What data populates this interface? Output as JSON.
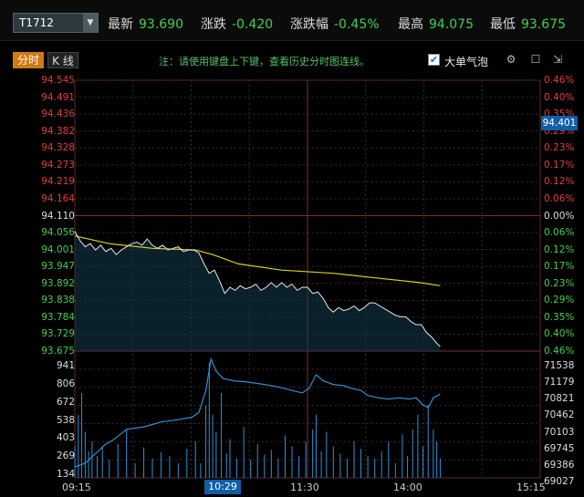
{
  "header": {
    "ticker": "T1712",
    "stats": [
      {
        "label": "最新",
        "value": "93.690",
        "color": "#3fd14f"
      },
      {
        "label": "涨跌",
        "value": "-0.420",
        "color": "#3fd14f"
      },
      {
        "label": "涨跌幅",
        "value": "-0.45%",
        "color": "#3fd14f"
      },
      {
        "label": "最高",
        "value": "94.075",
        "color": "#3fd14f"
      },
      {
        "label": "最低",
        "value": "93.675",
        "color": "#3fd14f"
      }
    ]
  },
  "toolbar": {
    "tab_intraday": "分时",
    "tab_kline": "K 线",
    "hint": "注：请使用键盘上下键，查看历史分时图连线。",
    "checkbox_label": "大单气泡",
    "checkbox_mark": "✔"
  },
  "colors": {
    "up": "#e23b3b",
    "down": "#3fd14f",
    "price": "#e9e9e9",
    "avg": "#d8d020",
    "volume": "#2f8fd6",
    "cursor": "#0f5ea8"
  },
  "chart_data": {
    "type": "line",
    "price_ticks": [
      "94.545",
      "94.491",
      "94.436",
      "94.382",
      "94.328",
      "94.273",
      "94.219",
      "94.164",
      "94.110",
      "94.056",
      "94.001",
      "93.947",
      "93.892",
      "93.838",
      "93.784",
      "93.729",
      "93.675"
    ],
    "pct_ticks": [
      "0.46%",
      "0.40%",
      "0.35%",
      "0.29%",
      "0.23%",
      "0.17%",
      "0.12%",
      "0.06%",
      "0.00%",
      "0.06%",
      "0.12%",
      "0.17%",
      "0.23%",
      "0.29%",
      "0.35%",
      "0.40%",
      "0.46%"
    ],
    "volume_ticks_left": [
      "941",
      "806",
      "672",
      "538",
      "403",
      "269",
      "134"
    ],
    "volume_ticks_right": [
      "71538",
      "71179",
      "70821",
      "70462",
      "70103",
      "69745",
      "69386",
      "69027"
    ],
    "x_ticks": [
      "09:15",
      "10:29",
      "11:30",
      "14:00",
      "15:15"
    ],
    "cursor_time": "10:29",
    "cursor_price": "94.401",
    "y_range": [
      93.675,
      94.545
    ],
    "x_range_minutes": [
      0,
      270
    ],
    "price_series": [
      [
        0,
        94.06
      ],
      [
        3,
        94.03
      ],
      [
        6,
        94.01
      ],
      [
        9,
        94.02
      ],
      [
        12,
        94.0
      ],
      [
        15,
        94.015
      ],
      [
        18,
        93.995
      ],
      [
        21,
        94.005
      ],
      [
        24,
        93.985
      ],
      [
        27,
        94.0
      ],
      [
        30,
        94.01
      ],
      [
        33,
        94.02
      ],
      [
        36,
        94.025
      ],
      [
        39,
        94.015
      ],
      [
        42,
        94.035
      ],
      [
        45,
        94.015
      ],
      [
        48,
        94.005
      ],
      [
        51,
        94.015
      ],
      [
        54,
        94.0
      ],
      [
        57,
        94.005
      ],
      [
        60,
        94.01
      ],
      [
        63,
        93.995
      ],
      [
        66,
        94.0
      ],
      [
        69,
        94.0
      ],
      [
        72,
        93.99
      ],
      [
        75,
        93.955
      ],
      [
        78,
        93.925
      ],
      [
        81,
        93.935
      ],
      [
        84,
        93.9
      ],
      [
        87,
        93.86
      ],
      [
        90,
        93.88
      ],
      [
        93,
        93.87
      ],
      [
        96,
        93.885
      ],
      [
        99,
        93.875
      ],
      [
        102,
        93.88
      ],
      [
        105,
        93.89
      ],
      [
        108,
        93.87
      ],
      [
        111,
        93.88
      ],
      [
        114,
        93.895
      ],
      [
        117,
        93.88
      ],
      [
        120,
        93.895
      ],
      [
        123,
        93.88
      ],
      [
        126,
        93.89
      ],
      [
        129,
        93.87
      ],
      [
        132,
        93.88
      ],
      [
        135,
        93.88
      ],
      [
        138,
        93.86
      ],
      [
        141,
        93.865
      ],
      [
        144,
        93.845
      ],
      [
        147,
        93.815
      ],
      [
        150,
        93.8
      ],
      [
        153,
        93.815
      ],
      [
        156,
        93.805
      ],
      [
        159,
        93.81
      ],
      [
        162,
        93.82
      ],
      [
        165,
        93.805
      ],
      [
        168,
        93.815
      ],
      [
        171,
        93.83
      ],
      [
        174,
        93.83
      ],
      [
        177,
        93.82
      ],
      [
        180,
        93.81
      ],
      [
        183,
        93.8
      ],
      [
        186,
        93.79
      ],
      [
        189,
        93.785
      ],
      [
        192,
        93.785
      ],
      [
        195,
        93.77
      ],
      [
        198,
        93.76
      ],
      [
        201,
        93.76
      ],
      [
        204,
        93.735
      ],
      [
        207,
        93.72
      ],
      [
        210,
        93.7
      ],
      [
        212,
        93.69
      ]
    ],
    "avg_series": [
      [
        0,
        94.045
      ],
      [
        20,
        94.02
      ],
      [
        45,
        94.005
      ],
      [
        70,
        94.0
      ],
      [
        80,
        93.985
      ],
      [
        95,
        93.955
      ],
      [
        120,
        93.935
      ],
      [
        150,
        93.925
      ],
      [
        175,
        93.91
      ],
      [
        200,
        93.895
      ],
      [
        212,
        93.885
      ]
    ],
    "volume_series": [
      [
        0,
        260
      ],
      [
        2,
        520
      ],
      [
        4,
        700
      ],
      [
        6,
        380
      ],
      [
        8,
        220
      ],
      [
        10,
        300
      ],
      [
        13,
        180
      ],
      [
        16,
        260
      ],
      [
        20,
        150
      ],
      [
        25,
        280
      ],
      [
        30,
        400
      ],
      [
        35,
        120
      ],
      [
        40,
        250
      ],
      [
        45,
        160
      ],
      [
        50,
        210
      ],
      [
        55,
        180
      ],
      [
        60,
        120
      ],
      [
        65,
        240
      ],
      [
        70,
        300
      ],
      [
        73,
        120
      ],
      [
        76,
        600
      ],
      [
        78,
        950
      ],
      [
        80,
        520
      ],
      [
        82,
        380
      ],
      [
        85,
        700
      ],
      [
        88,
        200
      ],
      [
        90,
        320
      ],
      [
        94,
        160
      ],
      [
        98,
        420
      ],
      [
        102,
        150
      ],
      [
        106,
        280
      ],
      [
        110,
        190
      ],
      [
        114,
        230
      ],
      [
        118,
        160
      ],
      [
        122,
        350
      ],
      [
        126,
        260
      ],
      [
        130,
        180
      ],
      [
        134,
        300
      ],
      [
        138,
        400
      ],
      [
        140,
        520
      ],
      [
        143,
        220
      ],
      [
        146,
        380
      ],
      [
        150,
        260
      ],
      [
        154,
        200
      ],
      [
        158,
        160
      ],
      [
        162,
        300
      ],
      [
        166,
        240
      ],
      [
        170,
        180
      ],
      [
        174,
        160
      ],
      [
        178,
        220
      ],
      [
        182,
        300
      ],
      [
        186,
        120
      ],
      [
        190,
        360
      ],
      [
        193,
        180
      ],
      [
        196,
        400
      ],
      [
        199,
        520
      ],
      [
        202,
        260
      ],
      [
        205,
        600
      ],
      [
        208,
        400
      ],
      [
        210,
        300
      ],
      [
        212,
        160
      ]
    ],
    "oi_series": [
      [
        0,
        90
      ],
      [
        6,
        120
      ],
      [
        12,
        200
      ],
      [
        18,
        280
      ],
      [
        22,
        310
      ],
      [
        30,
        400
      ],
      [
        40,
        420
      ],
      [
        50,
        460
      ],
      [
        60,
        480
      ],
      [
        68,
        500
      ],
      [
        72,
        540
      ],
      [
        76,
        720
      ],
      [
        79,
        980
      ],
      [
        82,
        880
      ],
      [
        86,
        820
      ],
      [
        92,
        800
      ],
      [
        100,
        790
      ],
      [
        110,
        770
      ],
      [
        118,
        750
      ],
      [
        126,
        720
      ],
      [
        132,
        700
      ],
      [
        136,
        740
      ],
      [
        140,
        850
      ],
      [
        144,
        800
      ],
      [
        150,
        770
      ],
      [
        156,
        760
      ],
      [
        160,
        740
      ],
      [
        166,
        720
      ],
      [
        170,
        680
      ],
      [
        176,
        660
      ],
      [
        182,
        650
      ],
      [
        188,
        660
      ],
      [
        194,
        650
      ],
      [
        198,
        660
      ],
      [
        202,
        600
      ],
      [
        205,
        580
      ],
      [
        208,
        660
      ],
      [
        212,
        690
      ]
    ],
    "volume_max": 1000
  }
}
